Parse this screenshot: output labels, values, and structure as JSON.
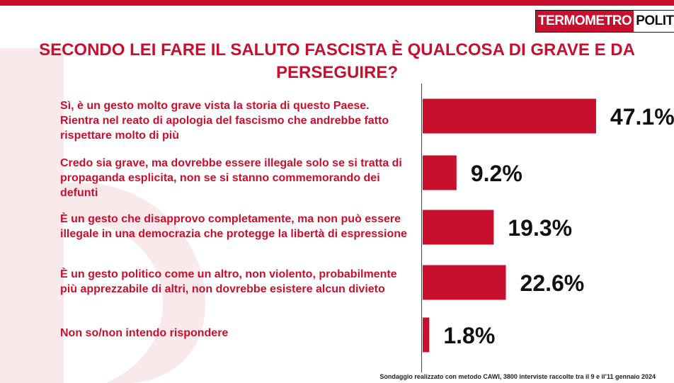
{
  "brand": {
    "part1": "TERMOMETRO",
    "part2": "POLITICO"
  },
  "colors": {
    "accent": "#c8102e",
    "text": "#111111"
  },
  "chart_data": {
    "type": "bar",
    "orientation": "horizontal",
    "title": "SECONDO LEI FARE IL SALUTO FASCISTA È QUALCOSA DI GRAVE E DA PERSEGUIRE?",
    "categories": [
      "Sì, è un gesto molto grave vista la storia di questo Paese. Rientra nel reato di apologia del fascismo che andrebbe fatto rispettare molto di più",
      "Credo sia grave, ma dovrebbe essere illegale solo se si tratta di propaganda esplicita, non se si stanno commemorando dei defunti",
      "È un gesto che disapprovo completamente, ma non può essere illegale in una democrazia che protegge la libertà  di espressione",
      "È un gesto politico come un altro, non violento, probabilmente più apprezzabile di altri, non dovrebbe esistere alcun divieto",
      "Non so/non intendo rispondere"
    ],
    "values": [
      47.1,
      9.2,
      19.3,
      22.6,
      1.8
    ],
    "value_labels": [
      "47.1%",
      "9.2%",
      "19.3%",
      "22.6%",
      "1.8%"
    ],
    "unit": "%",
    "xlim": [
      0,
      50
    ],
    "grid": false,
    "legend": "none"
  },
  "footnote": "Sondaggio realizzato con metodo CAWI, 3800 interviste raccolte tra il 9 e il’11 gennaio 2024"
}
